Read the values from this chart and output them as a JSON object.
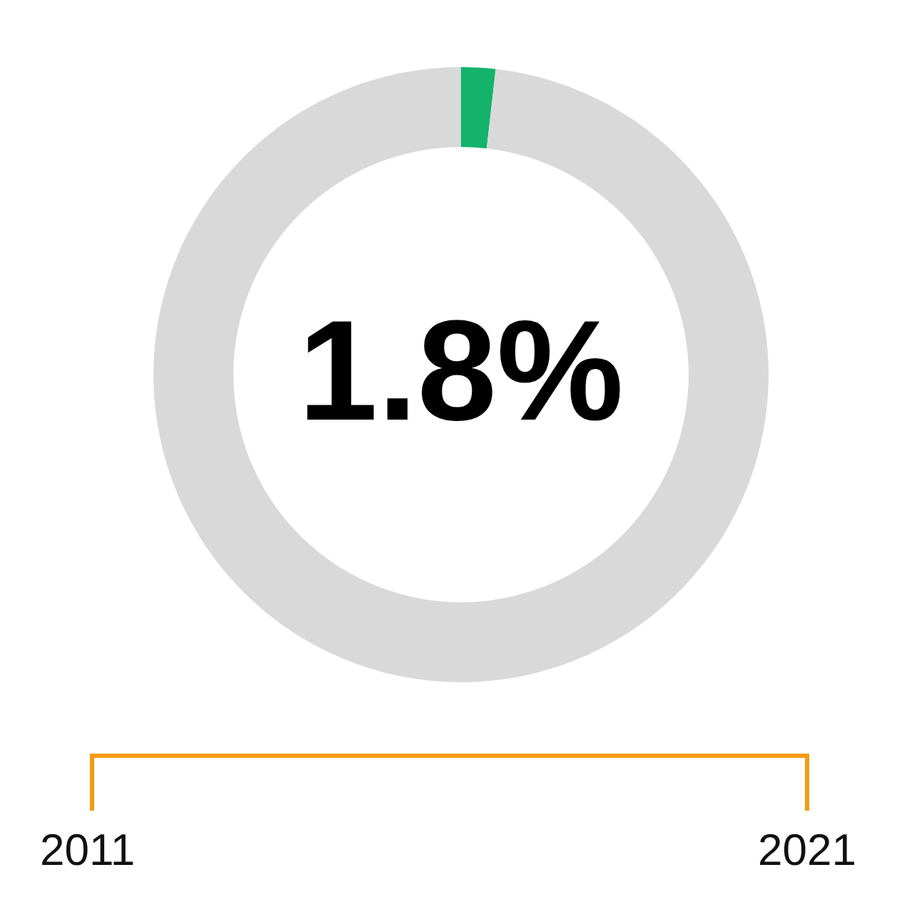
{
  "chart_data": {
    "type": "donut",
    "categories": [
      null,
      null
    ],
    "values": [
      1.8,
      98.2
    ],
    "colors": [
      "#13b36b",
      "#d9d9d9"
    ],
    "value_labels": [
      "1.8%",
      null
    ],
    "legend": false,
    "annotations": [
      "2011",
      "2021"
    ]
  }
}
